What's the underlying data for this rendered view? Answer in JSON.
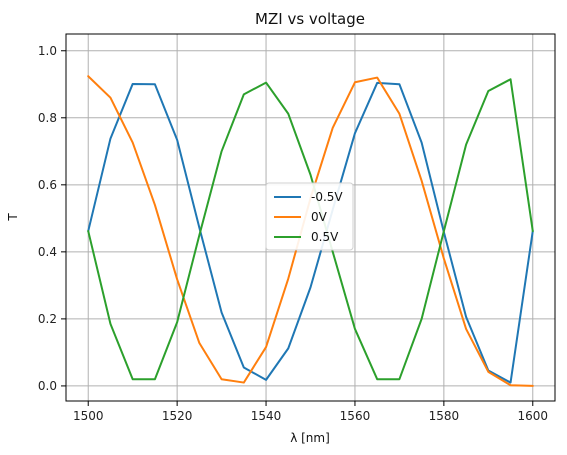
{
  "chart_data": {
    "type": "line",
    "title": "MZI vs voltage",
    "xlabel": "λ [nm]",
    "ylabel": "T",
    "xlim": [
      1495,
      1605
    ],
    "ylim": [
      -0.045,
      1.05
    ],
    "xticks": [
      1500,
      1520,
      1540,
      1560,
      1580,
      1600
    ],
    "xtick_labels": [
      "1500",
      "1520",
      "1540",
      "1560",
      "1580",
      "1600"
    ],
    "yticks": [
      0.0,
      0.2,
      0.4,
      0.6,
      0.8,
      1.0
    ],
    "ytick_labels": [
      "0.0",
      "0.2",
      "0.4",
      "0.6",
      "0.8",
      "1.0"
    ],
    "grid": true,
    "legend_position": "center",
    "series": [
      {
        "name": "-0.5V",
        "color": "#1f77b4",
        "x": [
          1500,
          1505,
          1510,
          1515,
          1520,
          1525,
          1530,
          1535,
          1540,
          1545,
          1550,
          1555,
          1560,
          1565,
          1570,
          1575,
          1580,
          1585,
          1590,
          1595,
          1600
        ],
        "y": [
          0.462,
          0.738,
          0.901,
          0.9,
          0.734,
          0.472,
          0.219,
          0.055,
          0.018,
          0.112,
          0.294,
          0.526,
          0.754,
          0.904,
          0.9,
          0.726,
          0.459,
          0.206,
          0.046,
          0.01,
          0.462
        ]
      },
      {
        "name": "0V",
        "color": "#ff7f0e",
        "x": [
          1500,
          1505,
          1510,
          1515,
          1520,
          1525,
          1530,
          1535,
          1540,
          1545,
          1550,
          1555,
          1560,
          1565,
          1570,
          1575,
          1580,
          1585,
          1590,
          1595,
          1600
        ],
        "y": [
          0.924,
          0.86,
          0.726,
          0.54,
          0.318,
          0.128,
          0.02,
          0.01,
          0.116,
          0.32,
          0.56,
          0.77,
          0.906,
          0.92,
          0.812,
          0.612,
          0.38,
          0.17,
          0.042,
          0.002,
          0.0
        ]
      },
      {
        "name": "0.5V",
        "color": "#2ca02c",
        "x": [
          1500,
          1505,
          1510,
          1515,
          1520,
          1525,
          1530,
          1535,
          1540,
          1545,
          1550,
          1555,
          1560,
          1565,
          1570,
          1575,
          1580,
          1585,
          1590,
          1595,
          1600
        ],
        "y": [
          0.462,
          0.185,
          0.02,
          0.02,
          0.19,
          0.45,
          0.7,
          0.87,
          0.905,
          0.812,
          0.63,
          0.4,
          0.17,
          0.02,
          0.02,
          0.2,
          0.462,
          0.72,
          0.88,
          0.915,
          0.462
        ]
      }
    ]
  }
}
